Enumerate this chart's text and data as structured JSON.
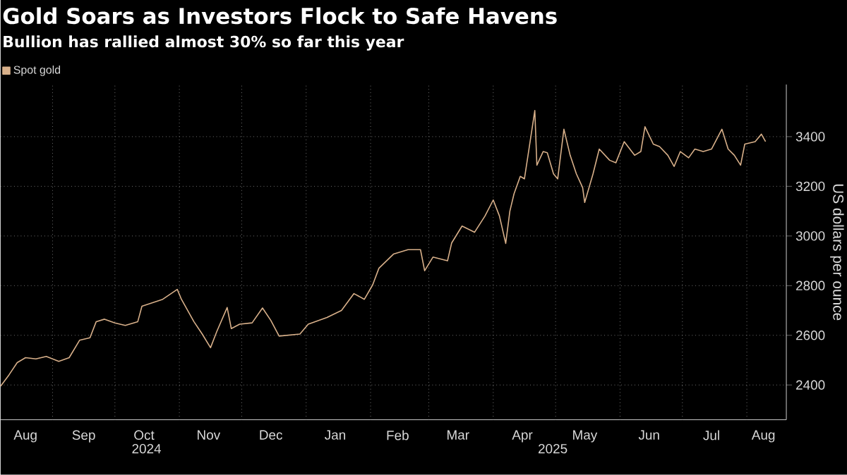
{
  "chart_data": {
    "type": "line",
    "title": "Gold Soars as Investors Flock to Safe Havens",
    "subtitle": "Bullion has rallied almost 30% so far this year",
    "ylabel": "US dollars per ounce",
    "xlim": [
      "2024-08-07",
      "2025-08-20"
    ],
    "xticks": [
      {
        "value": "2024-09-01",
        "label": null
      },
      {
        "value": "2024-10-01",
        "label": null
      },
      {
        "value": "2024-11-01",
        "label": null
      },
      {
        "value": "2024-12-01",
        "label": null
      },
      {
        "value": "2025-01-01",
        "label": null
      },
      {
        "value": "2025-02-01",
        "label": null
      },
      {
        "value": "2025-03-01",
        "label": null
      },
      {
        "value": "2025-04-01",
        "label": null
      },
      {
        "value": "2025-05-01",
        "label": null
      },
      {
        "value": "2025-06-01",
        "label": null
      },
      {
        "value": "2025-07-01",
        "label": null
      },
      {
        "value": "2025-08-01",
        "label": null
      },
      {
        "value": "2024-08-19",
        "label": "Aug"
      },
      {
        "value": "2024-09-16",
        "label": "Sep"
      },
      {
        "value": "2024-10-15",
        "label": "Oct"
      },
      {
        "value": "2024-11-15",
        "label": "Nov"
      },
      {
        "value": "2024-12-15",
        "label": "Dec"
      },
      {
        "value": "2025-01-15",
        "label": "Jan"
      },
      {
        "value": "2025-02-14",
        "label": "Feb"
      },
      {
        "value": "2025-03-15",
        "label": "Mar"
      },
      {
        "value": "2025-04-15",
        "label": "Apr"
      },
      {
        "value": "2025-05-15",
        "label": "May"
      },
      {
        "value": "2025-06-15",
        "label": "Jun"
      },
      {
        "value": "2025-07-15",
        "label": "Jul"
      },
      {
        "value": "2025-08-09",
        "label": "Aug"
      }
    ],
    "ylim": [
      2260,
      3610
    ],
    "yticks": [
      2400,
      2600,
      2800,
      3000,
      3200,
      3400
    ],
    "annotations": [
      "2024",
      "2025"
    ],
    "grid": true,
    "legend": "top left",
    "marker": "none",
    "line_style": "solid",
    "x": [
      "2024-08-07",
      "2024-08-11",
      "2024-08-15",
      "2024-08-19",
      "2024-08-24",
      "2024-08-29",
      "2024-09-04",
      "2024-09-09",
      "2024-09-14",
      "2024-09-19",
      "2024-09-22",
      "2024-09-26",
      "2024-10-01",
      "2024-10-06",
      "2024-10-12",
      "2024-10-14",
      "2024-10-24",
      "2024-10-31",
      "2024-11-02",
      "2024-11-08",
      "2024-11-12",
      "2024-11-16",
      "2024-11-19",
      "2024-11-24",
      "2024-11-26",
      "2024-11-30",
      "2024-12-06",
      "2024-12-11",
      "2024-12-15",
      "2024-12-19",
      "2024-12-29",
      "2025-01-02",
      "2025-01-11",
      "2025-01-18",
      "2025-01-24",
      "2025-01-29",
      "2025-02-02",
      "2025-02-05",
      "2025-02-12",
      "2025-02-19",
      "2025-02-25",
      "2025-02-27",
      "2025-03-03",
      "2025-03-10",
      "2025-03-12",
      "2025-03-17",
      "2025-03-23",
      "2025-03-28",
      "2025-04-01",
      "2025-04-04",
      "2025-04-07",
      "2025-04-09",
      "2025-04-11",
      "2025-04-14",
      "2025-04-16",
      "2025-04-18",
      "2025-04-21",
      "2025-04-22",
      "2025-04-25",
      "2025-04-27",
      "2025-04-30",
      "2025-05-02",
      "2025-05-05",
      "2025-05-08",
      "2025-05-11",
      "2025-05-14",
      "2025-05-15",
      "2025-05-19",
      "2025-05-22",
      "2025-05-27",
      "2025-05-30",
      "2025-06-03",
      "2025-06-08",
      "2025-06-11",
      "2025-06-13",
      "2025-06-17",
      "2025-06-20",
      "2025-06-24",
      "2025-06-27",
      "2025-06-30",
      "2025-07-04",
      "2025-07-07",
      "2025-07-11",
      "2025-07-15",
      "2025-07-20",
      "2025-07-23",
      "2025-07-26",
      "2025-07-29",
      "2025-07-31",
      "2025-08-05",
      "2025-08-08",
      "2025-08-10"
    ],
    "series": [
      {
        "name": "Spot gold",
        "color": "#d8b08a",
        "values": [
          2395,
          2440,
          2490,
          2510,
          2505,
          2515,
          2495,
          2510,
          2580,
          2590,
          2655,
          2665,
          2650,
          2640,
          2655,
          2717,
          2745,
          2785,
          2745,
          2655,
          2605,
          2550,
          2615,
          2712,
          2627,
          2645,
          2650,
          2710,
          2660,
          2597,
          2605,
          2645,
          2672,
          2700,
          2768,
          2745,
          2803,
          2870,
          2927,
          2945,
          2945,
          2860,
          2915,
          2900,
          2972,
          3040,
          3015,
          3080,
          3145,
          3080,
          2970,
          3100,
          3170,
          3240,
          3230,
          3340,
          3505,
          3285,
          3340,
          3335,
          3250,
          3230,
          3430,
          3325,
          3250,
          3195,
          3135,
          3250,
          3350,
          3305,
          3295,
          3380,
          3325,
          3340,
          3440,
          3370,
          3360,
          3325,
          3280,
          3340,
          3315,
          3350,
          3340,
          3350,
          3430,
          3350,
          3325,
          3285,
          3370,
          3380,
          3410,
          3380
        ]
      }
    ]
  }
}
